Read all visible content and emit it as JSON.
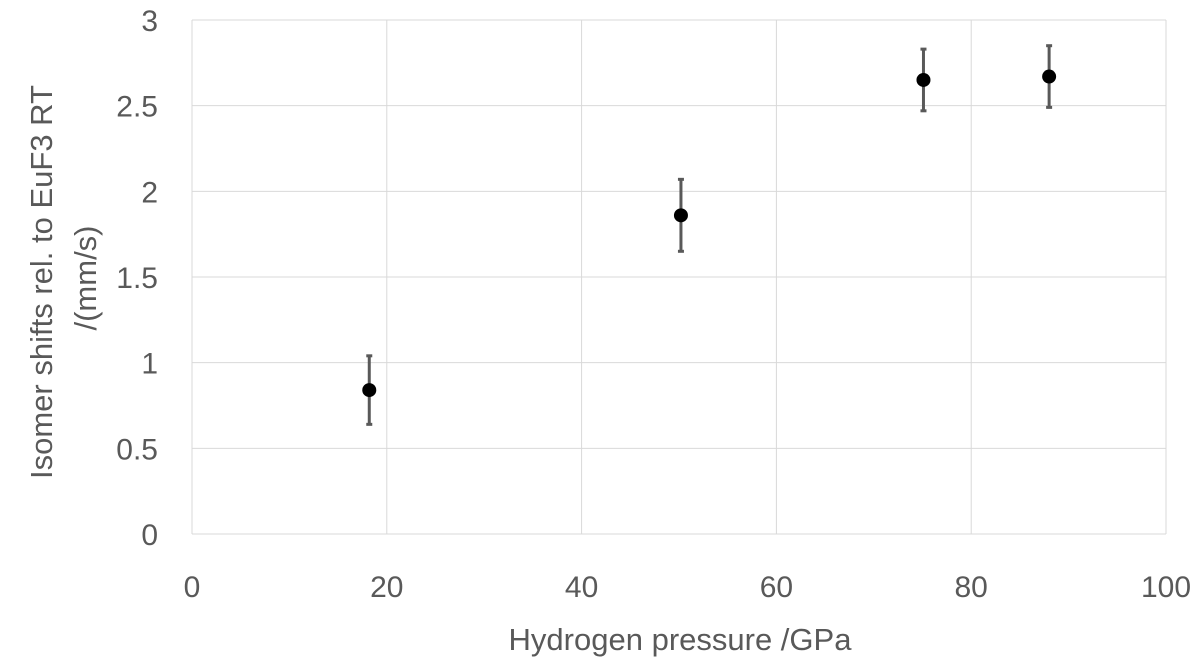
{
  "chart_data": {
    "type": "scatter",
    "xlabel": "Hydrogen pressure /GPa",
    "ylabel_lines": [
      "Isomer shifts rel. to EuF3 RT",
      "/(mm/s)"
    ],
    "xlim": [
      0,
      100
    ],
    "ylim": [
      0,
      3
    ],
    "x_ticks": [
      0,
      20,
      40,
      60,
      80,
      100
    ],
    "y_ticks": [
      0,
      0.5,
      1,
      1.5,
      2,
      2.5,
      3
    ],
    "x_tick_labels": [
      "0",
      "20",
      "40",
      "60",
      "80",
      "100"
    ],
    "y_tick_labels": [
      "0",
      "0.5",
      "1",
      "1.5",
      "2",
      "2.5",
      "3"
    ],
    "grid": true,
    "series": [
      {
        "color": "#000000",
        "points": [
          {
            "x": 18.2,
            "y": 0.84,
            "err": 0.2
          },
          {
            "x": 50.2,
            "y": 1.86,
            "err": 0.21
          },
          {
            "x": 75.1,
            "y": 2.65,
            "err": 0.18
          },
          {
            "x": 88.0,
            "y": 2.67,
            "err": 0.18
          }
        ]
      }
    ],
    "colors": {
      "grid": "#d9d9d9",
      "errorbar": "#595959",
      "text": "#595959",
      "marker": "#000000"
    }
  }
}
